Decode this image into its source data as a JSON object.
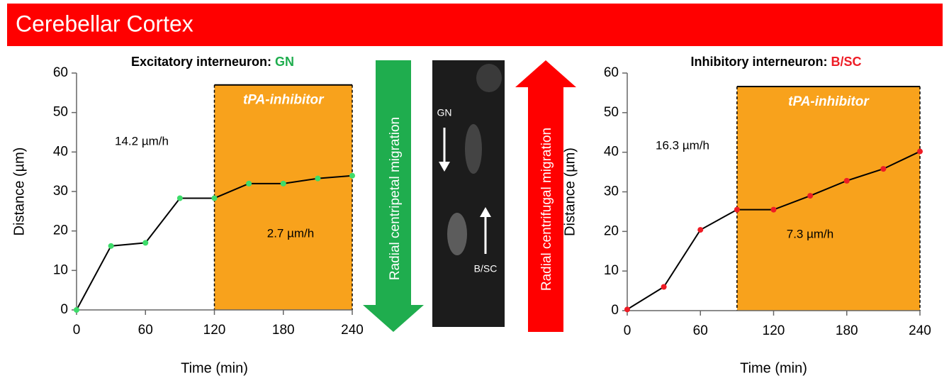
{
  "header": {
    "title": "Cerebellar Cortex"
  },
  "middle": {
    "left_arrow": "Radial centripetal migration",
    "right_arrow": "Radial centrifugal migration",
    "image_label_top": "GN",
    "image_label_bottom": "B/SC"
  },
  "chart_data": [
    {
      "type": "line",
      "title": "Excitatory interneuron: ",
      "title_highlight": "GN",
      "highlight_color": "#1fad4e",
      "x_label": "Time (min)",
      "y_label": "Distance (µm)",
      "x": [
        0,
        30,
        60,
        90,
        120,
        150,
        180,
        210,
        240
      ],
      "values": [
        0,
        16.2,
        17,
        28.3,
        28.3,
        32,
        32,
        33.3,
        34
      ],
      "color": "#3ddc6a",
      "line_color": "#000000",
      "xlim": [
        0,
        240
      ],
      "xticks": [
        0,
        60,
        120,
        180,
        240
      ],
      "ylim": [
        0,
        60
      ],
      "yticks": [
        0,
        10,
        20,
        30,
        40,
        50,
        60
      ],
      "shade": {
        "xlim": [
          120,
          240
        ],
        "top": 57,
        "label": "tPA-inhibitor",
        "color": "#f8a21c"
      },
      "annotations": [
        "14.2 µm/h",
        "2.7 µm/h"
      ]
    },
    {
      "type": "line",
      "title": "Inhibitory interneuron: ",
      "title_highlight": "B/SC",
      "highlight_color": "#ee1c25",
      "x_label": "Time (min)",
      "y_label": "Distance (µm)",
      "x": [
        0,
        30,
        60,
        90,
        120,
        150,
        180,
        210,
        240
      ],
      "values": [
        0.3,
        6,
        20.4,
        25.5,
        25.5,
        29,
        32.8,
        35.8,
        40.2
      ],
      "color": "#ee1c25",
      "line_color": "#000000",
      "xlim": [
        0,
        240
      ],
      "xticks": [
        0,
        60,
        120,
        180,
        240
      ],
      "ylim": [
        0,
        60
      ],
      "yticks": [
        0,
        10,
        20,
        30,
        40,
        50,
        60
      ],
      "shade": {
        "xlim": [
          90,
          240
        ],
        "top": 56.6,
        "label": "tPA-inhibitor",
        "color": "#f8a21c"
      },
      "annotations": [
        "16.3 µm/h",
        "7.3 µm/h"
      ]
    }
  ]
}
